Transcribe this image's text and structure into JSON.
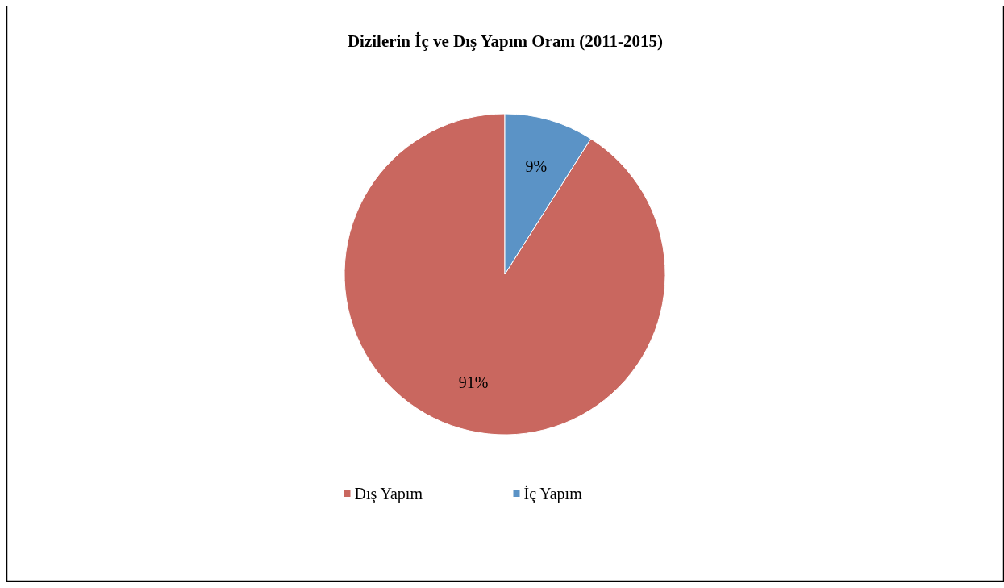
{
  "chart_data": {
    "type": "pie",
    "title": "Dizilerin İç ve Dış Yapım Oranı (2011-2015)",
    "categories": [
      "Dış Yapım",
      "İç Yapım"
    ],
    "values": [
      91,
      9
    ],
    "colors": [
      "#c9675f",
      "#5b93c6"
    ],
    "value_labels": [
      "91%",
      "9%"
    ],
    "legend": "bottom"
  }
}
